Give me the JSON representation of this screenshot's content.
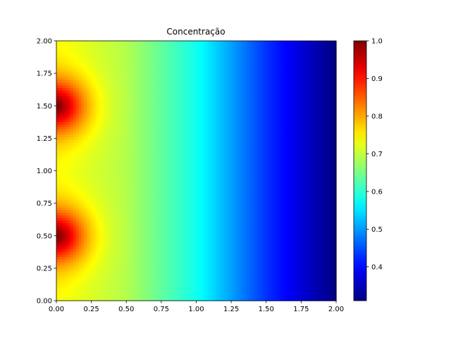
{
  "chart_data": {
    "type": "heatmap",
    "title": "Concentração",
    "xlabel": "",
    "ylabel": "",
    "xlim": [
      0.0,
      2.0
    ],
    "ylim": [
      0.0,
      2.0
    ],
    "x_ticks": [
      "0.00",
      "0.25",
      "0.50",
      "0.75",
      "1.00",
      "1.25",
      "1.50",
      "1.75",
      "2.00"
    ],
    "y_ticks": [
      "0.00",
      "0.25",
      "0.50",
      "0.75",
      "1.00",
      "1.25",
      "1.50",
      "1.75",
      "2.00"
    ],
    "colormap": "jet",
    "colorbar": {
      "range": [
        0.31,
        1.0
      ],
      "ticks": [
        "0.4",
        "0.5",
        "0.6",
        "0.7",
        "0.8",
        "0.9",
        "1.0"
      ],
      "placement": "right"
    },
    "field": {
      "description_of_values": "concentration falls from about 0.75 at x=0 to about 0.31 at x=2, with hot spots reaching 1.0 at the left edge",
      "baseline_profile": [
        {
          "x": 0.0,
          "value": 0.74
        },
        {
          "x": 0.5,
          "value": 0.69
        },
        {
          "x": 1.0,
          "value": 0.58
        },
        {
          "x": 1.5,
          "value": 0.43
        },
        {
          "x": 2.0,
          "value": 0.31
        }
      ],
      "sources": [
        {
          "x": 0.0,
          "y": 0.5,
          "peak": 1.0,
          "radius": 0.32
        },
        {
          "x": 0.0,
          "y": 1.5,
          "peak": 1.0,
          "radius": 0.32
        }
      ]
    },
    "grid": false
  }
}
